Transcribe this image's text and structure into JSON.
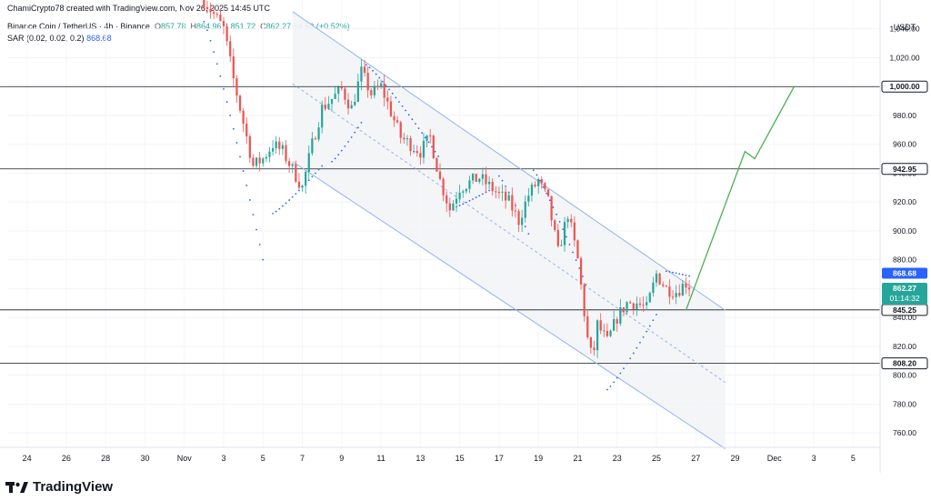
{
  "header": {
    "author_line": "ChamiCrypto78 created with TradingView.com, Nov 26, 2025 14:45 UTC",
    "symbol": "Binance Coin / TetherUS · 4h · Binance",
    "ohlc": {
      "o": "857.78",
      "h": "864.96",
      "l": "851.72",
      "c": "862.27",
      "change": "+4.50 (+0.52%)"
    },
    "indicator_name": "SAR (0.02, 0.02, 0.2)",
    "indicator_value": "868.68"
  },
  "footer": {
    "brand": "TradingView"
  },
  "colors": {
    "up": "#26a69a",
    "down": "#ef5350",
    "channel": "#90b4f0",
    "projection": "#4caf50",
    "sar": "#2962ff"
  },
  "chart_data": {
    "type": "candlestick",
    "yaxis_unit": "USDT",
    "ylim": [
      750,
      1060
    ],
    "yticks": [
      "1,040.00",
      "1,020.00",
      "1,000.00",
      "980.00",
      "960.00",
      "940.00",
      "920.00",
      "900.00",
      "880.00",
      "860.00",
      "840.00",
      "820.00",
      "800.00",
      "780.00",
      "760.00"
    ],
    "yticks_values": [
      1040,
      1020,
      1000,
      980,
      960,
      940,
      920,
      900,
      880,
      860,
      840,
      820,
      800,
      780,
      760
    ],
    "xlim": [
      "Oct 23",
      "Dec 6"
    ],
    "xticks": [
      {
        "label": "24",
        "date": "Oct 24"
      },
      {
        "label": "26",
        "date": "Oct 26"
      },
      {
        "label": "28",
        "date": "Oct 28"
      },
      {
        "label": "30",
        "date": "Oct 30"
      },
      {
        "label": "Nov",
        "date": "Nov 1"
      },
      {
        "label": "3",
        "date": "Nov 3"
      },
      {
        "label": "5",
        "date": "Nov 5"
      },
      {
        "label": "7",
        "date": "Nov 7"
      },
      {
        "label": "9",
        "date": "Nov 9"
      },
      {
        "label": "11",
        "date": "Nov 11"
      },
      {
        "label": "13",
        "date": "Nov 13"
      },
      {
        "label": "15",
        "date": "Nov 15"
      },
      {
        "label": "17",
        "date": "Nov 17"
      },
      {
        "label": "19",
        "date": "Nov 19"
      },
      {
        "label": "21",
        "date": "Nov 21"
      },
      {
        "label": "23",
        "date": "Nov 23"
      },
      {
        "label": "25",
        "date": "Nov 25"
      },
      {
        "label": "27",
        "date": "Nov 27"
      },
      {
        "label": "29",
        "date": "Nov 29"
      },
      {
        "label": "Dec",
        "date": "Dec 1"
      },
      {
        "label": "3",
        "date": "Dec 3"
      },
      {
        "label": "5",
        "date": "Dec 5"
      }
    ],
    "horizontal_levels": [
      {
        "price": 1000.0,
        "label": "1,000.00"
      },
      {
        "price": 942.95,
        "label": "942.95"
      },
      {
        "price": 845.25,
        "label": "845.25"
      },
      {
        "price": 808.2,
        "label": "808.20"
      }
    ],
    "last_price": {
      "price": 862.27,
      "label": "862.27",
      "countdown": "01:14:32"
    },
    "sar_current": {
      "price": 868.68,
      "label": "868.68"
    },
    "channel": {
      "upper": [
        [
          "Nov 6 12:00",
          1052
        ],
        [
          "Nov 28 12:00",
          845
        ]
      ],
      "middle": [
        [
          "Nov 6 12:00",
          1002
        ],
        [
          "Nov 28 12:00",
          795
        ]
      ],
      "lower": [
        [
          "Nov 6 12:00",
          948
        ],
        [
          "Nov 28 12:00",
          749
        ]
      ]
    },
    "projection": [
      [
        "Nov 26 12:00",
        845
      ],
      [
        "Nov 29 12:00",
        955
      ],
      [
        "Nov 30 00:00",
        950
      ],
      [
        "Dec 2 00:00",
        1000
      ]
    ],
    "anchors": [
      [
        "Nov 2 00:00",
        1060
      ],
      [
        "Nov 3 00:00",
        1040
      ],
      [
        "Nov 3 12:00",
        1005
      ],
      [
        "Nov 4 00:00",
        975
      ],
      [
        "Nov 4 12:00",
        945
      ],
      [
        "Nov 5 00:00",
        950
      ],
      [
        "Nov 5 12:00",
        960
      ],
      [
        "Nov 6 00:00",
        955
      ],
      [
        "Nov 7 00:00",
        930
      ],
      [
        "Nov 7 12:00",
        960
      ],
      [
        "Nov 8 00:00",
        985
      ],
      [
        "Nov 9 00:00",
        998
      ],
      [
        "Nov 9 12:00",
        985
      ],
      [
        "Nov 10 00:00",
        1010
      ],
      [
        "Nov 10 12:00",
        995
      ],
      [
        "Nov 11 00:00",
        1000
      ],
      [
        "Nov 12 00:00",
        965
      ],
      [
        "Nov 13 00:00",
        955
      ],
      [
        "Nov 13 12:00",
        965
      ],
      [
        "Nov 14 00:00",
        935
      ],
      [
        "Nov 14 12:00",
        915
      ],
      [
        "Nov 15 00:00",
        930
      ],
      [
        "Nov 16 00:00",
        937
      ],
      [
        "Nov 17 00:00",
        925
      ],
      [
        "Nov 17 12:00",
        920
      ],
      [
        "Nov 18 00:00",
        907
      ],
      [
        "Nov 18 12:00",
        925
      ],
      [
        "Nov 19 00:00",
        935
      ],
      [
        "Nov 19 12:00",
        920
      ],
      [
        "Nov 20 00:00",
        885
      ],
      [
        "Nov 20 12:00",
        912
      ],
      [
        "Nov 21 00:00",
        880
      ],
      [
        "Nov 21 12:00",
        825
      ],
      [
        "Nov 21 18:00",
        810
      ],
      [
        "Nov 22 00:00",
        835
      ],
      [
        "Nov 22 12:00",
        823
      ],
      [
        "Nov 23 00:00",
        840
      ],
      [
        "Nov 23 12:00",
        850
      ],
      [
        "Nov 24 00:00",
        850
      ],
      [
        "Nov 24 12:00",
        846
      ],
      [
        "Nov 25 00:00",
        870
      ],
      [
        "Nov 25 12:00",
        860
      ],
      [
        "Nov 26 00:00",
        858
      ],
      [
        "Nov 26 12:00",
        864
      ],
      [
        "Nov 26 16:00",
        862
      ]
    ],
    "sar_segments": [
      [
        [
          "Nov 2 00:00",
          1045
        ],
        [
          "Nov 5 00:00",
          880
        ]
      ],
      [
        [
          "Nov 5 12:00",
          912
        ],
        [
          "Nov 8 00:00",
          945
        ]
      ],
      [
        [
          "Nov 8 12:00",
          948
        ],
        [
          "Nov 10 00:00",
          975
        ]
      ],
      [
        [
          "Nov 10 06:00",
          1015
        ],
        [
          "Nov 14 00:00",
          950
        ]
      ],
      [
        [
          "Nov 14 12:00",
          915
        ],
        [
          "Nov 16 12:00",
          928
        ]
      ],
      [
        [
          "Nov 17 00:00",
          938
        ],
        [
          "Nov 18 12:00",
          898
        ]
      ],
      [
        [
          "Nov 18 18:00",
          942
        ],
        [
          "Nov 21 12:00",
          860
        ]
      ],
      [
        [
          "Nov 22 12:00",
          790
        ],
        [
          "Nov 25 00:00",
          842
        ]
      ],
      [
        [
          "Nov 25 12:00",
          872
        ],
        [
          "Nov 26 16:00",
          868.68
        ]
      ]
    ]
  }
}
